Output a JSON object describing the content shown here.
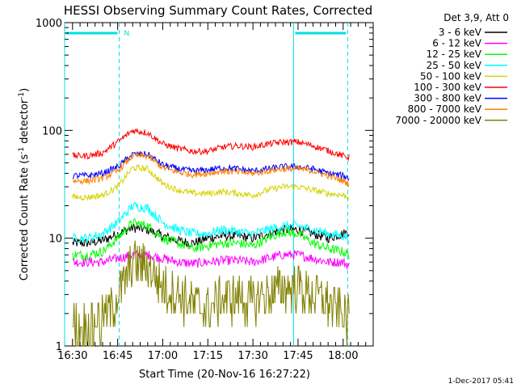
{
  "footer_date": "1-Dec-2017 05:41",
  "chart_data": {
    "type": "line",
    "title": "HESSI Observing Summary Count Rates, Corrected",
    "xlabel": "Start Time (20-Nov-16 16:27:22)",
    "ylabel": "Corrected Count Rate (s",
    "ylabel_sup1": "-1",
    "ylabel_mid": " detector",
    "ylabel_sup2": "-1",
    "ylabel_end": ")",
    "y_scale": "log",
    "ylim": [
      1,
      1000
    ],
    "xlim": [
      "16:27:22",
      "18:10:00"
    ],
    "x_ticks": [
      {
        "t": "16:30",
        "label": "16:30"
      },
      {
        "t": "16:45",
        "label": "16:45"
      },
      {
        "t": "17:00",
        "label": "17:00"
      },
      {
        "t": "17:15",
        "label": "17:15"
      },
      {
        "t": "17:30",
        "label": "17:30"
      },
      {
        "t": "17:45",
        "label": "17:45"
      },
      {
        "t": "18:00",
        "label": "18:00"
      }
    ],
    "y_ticks": [
      {
        "v": 1,
        "label": "1"
      },
      {
        "v": 10,
        "label": "10"
      },
      {
        "v": 100,
        "label": "100"
      },
      {
        "v": 1000,
        "label": "1000"
      }
    ],
    "legend_header": "Det 3,9, Att 0",
    "legend_position": "right",
    "x": [
      "16:30",
      "16:35",
      "16:40",
      "16:45",
      "16:50",
      "16:55",
      "17:00",
      "17:05",
      "17:10",
      "17:15",
      "17:20",
      "17:25",
      "17:30",
      "17:35",
      "17:40",
      "17:45",
      "17:50",
      "17:55",
      "18:00",
      "18:02"
    ],
    "series": [
      {
        "name": "3 - 6 keV",
        "color": "#000000",
        "values": [
          9,
          9,
          9.5,
          11,
          12.5,
          12,
          10.5,
          9.5,
          9,
          10,
          10.5,
          10.5,
          10,
          11,
          12,
          12,
          11,
          10,
          11,
          11.5
        ]
      },
      {
        "name": "6 - 12 keV",
        "color": "#ff00ff",
        "values": [
          6,
          6,
          6,
          6.5,
          7,
          7,
          6.5,
          6,
          5.8,
          6,
          6.2,
          6.2,
          6,
          6.5,
          7,
          7,
          6.5,
          6,
          6,
          5.5
        ]
      },
      {
        "name": "12 - 25 keV",
        "color": "#00ff00",
        "values": [
          7,
          7,
          7.5,
          10,
          14,
          13,
          10,
          9,
          8,
          8.5,
          9,
          9,
          8.5,
          10,
          11.5,
          11,
          9,
          8,
          7.5,
          7
        ]
      },
      {
        "name": "25 - 50 keV",
        "color": "#00ffff",
        "values": [
          10,
          10,
          11,
          14,
          20,
          19,
          14,
          12,
          11,
          11,
          12,
          11.5,
          11,
          12,
          13,
          13,
          12,
          11,
          10.5,
          10
        ]
      },
      {
        "name": "50 - 100 keV",
        "color": "#d4d400",
        "values": [
          24,
          24,
          25,
          30,
          45,
          44,
          32,
          28,
          26,
          26,
          27,
          26,
          25,
          28,
          30,
          30,
          28,
          26,
          25,
          24
        ]
      },
      {
        "name": "100 - 300 keV",
        "color": "#ff0000",
        "values": [
          58,
          58,
          62,
          78,
          100,
          95,
          75,
          68,
          64,
          64,
          70,
          72,
          70,
          75,
          78,
          78,
          72,
          65,
          58,
          56
        ]
      },
      {
        "name": "300 - 800 keV",
        "color": "#0000ff",
        "values": [
          38,
          38,
          40,
          46,
          60,
          60,
          48,
          44,
          42,
          43,
          45,
          44,
          42,
          44,
          46,
          46,
          44,
          40,
          38,
          36
        ]
      },
      {
        "name": "800 - 7000 keV",
        "color": "#ff8000",
        "values": [
          34,
          34,
          36,
          42,
          58,
          58,
          45,
          41,
          39,
          40,
          42,
          41,
          40,
          42,
          44,
          44,
          42,
          38,
          34,
          32
        ]
      },
      {
        "name": "7000 - 20000 keV",
        "color": "#808000",
        "values": [
          1.5,
          1.5,
          1.8,
          2.8,
          6,
          5.5,
          3.5,
          3,
          2.5,
          2.2,
          2.8,
          2.8,
          2.6,
          3,
          3.5,
          3.5,
          3,
          2.5,
          2,
          1.8
        ]
      }
    ],
    "attenuator_segments": [
      {
        "start": "16:27:22",
        "end": "16:45:30",
        "label": "N"
      },
      {
        "start": "17:43:30",
        "end": "18:01:30",
        "label": ""
      }
    ],
    "solid_markers": [
      "16:27:22",
      "17:43:30"
    ],
    "dashed_markers": [
      "16:45:30",
      "18:01:30"
    ]
  }
}
